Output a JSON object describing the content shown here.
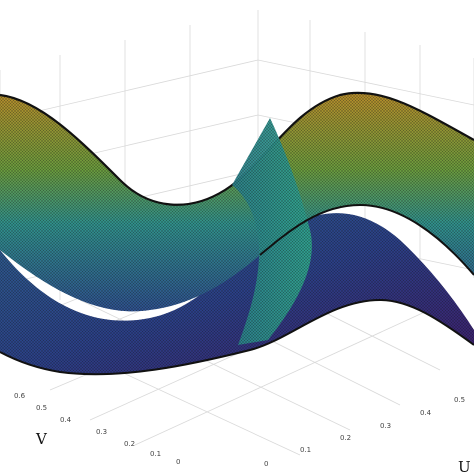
{
  "chart_data": {
    "type": "surface3d",
    "xlabel": "U",
    "ylabel": "V",
    "zlabel": "",
    "u_ticks": [
      "0",
      "0.1",
      "0.2",
      "0.3",
      "0.4",
      "0.5"
    ],
    "v_ticks": [
      "0",
      "0.1",
      "0.2",
      "0.3",
      "0.4",
      "0.5",
      "0.6"
    ],
    "u_range": [
      0,
      1
    ],
    "v_range": [
      0,
      1
    ],
    "grid": true,
    "colormap": [
      "#3e0f5c",
      "#31508c",
      "#21908c",
      "#5ec962",
      "#b5b32a",
      "#e0a21f"
    ],
    "mesh_color": "#1a1a1a",
    "surface": "sin(2*pi*v) undulation with saddle crossing at mid u"
  }
}
